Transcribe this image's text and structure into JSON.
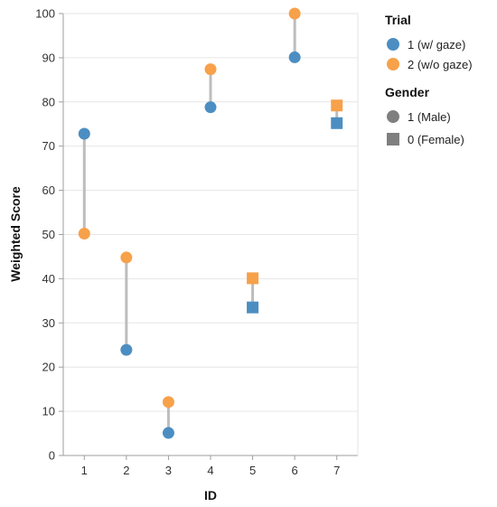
{
  "colors": {
    "trial_1": "#4c8ec2",
    "trial_2": "#f7a14a",
    "gender_symbol": "#7f7f7f",
    "connector": "#bdbdbd",
    "grid": "#e6e6e6",
    "axis": "#9e9e9e"
  },
  "chart_data": {
    "type": "scatter",
    "xlabel": "ID",
    "ylabel": "Weighted Score",
    "x_categories": [
      1,
      2,
      3,
      4,
      5,
      6,
      7
    ],
    "ylim": [
      0,
      100
    ],
    "y_ticks": [
      0,
      10,
      20,
      30,
      40,
      50,
      60,
      70,
      80,
      90,
      100
    ],
    "grid": true,
    "legend_placement": "right",
    "legend": {
      "color": {
        "title": "Trial",
        "items": [
          {
            "key": "1",
            "label": "1 (w/ gaze)"
          },
          {
            "key": "2",
            "label": "2 (w/o gaze)"
          }
        ]
      },
      "shape": {
        "title": "Gender",
        "items": [
          {
            "key": "1",
            "label": "1 (Male)",
            "shape": "circle"
          },
          {
            "key": "0",
            "label": "0 (Female)",
            "shape": "square"
          }
        ]
      }
    },
    "points": [
      {
        "id": 1,
        "gender": 1,
        "trial_1": 72.8,
        "trial_2": 50.2
      },
      {
        "id": 2,
        "gender": 1,
        "trial_1": 23.9,
        "trial_2": 44.8
      },
      {
        "id": 3,
        "gender": 1,
        "trial_1": 5.1,
        "trial_2": 12.1
      },
      {
        "id": 4,
        "gender": 1,
        "trial_1": 78.8,
        "trial_2": 87.4
      },
      {
        "id": 5,
        "gender": 0,
        "trial_1": 33.5,
        "trial_2": 40.1
      },
      {
        "id": 6,
        "gender": 1,
        "trial_1": 90.1,
        "trial_2": 100.0
      },
      {
        "id": 7,
        "gender": 0,
        "trial_1": 75.2,
        "trial_2": 79.2
      }
    ]
  }
}
